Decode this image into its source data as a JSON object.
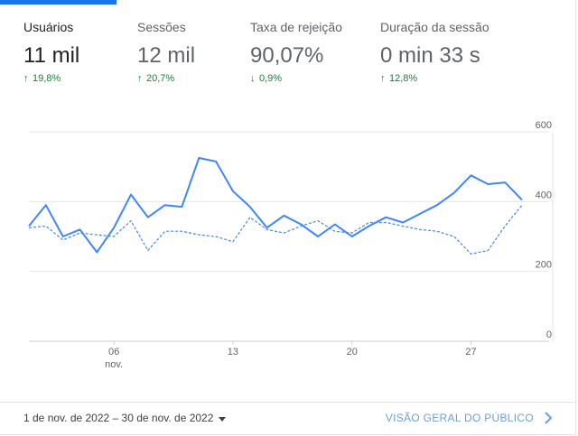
{
  "metrics": [
    {
      "label": "Usuários",
      "value": "11 mil",
      "delta": "19,8%",
      "direction": "up",
      "active": true
    },
    {
      "label": "Sessões",
      "value": "12 mil",
      "delta": "20,7%",
      "direction": "up",
      "active": false
    },
    {
      "label": "Taxa de rejeição",
      "value": "90,07%",
      "delta": "0,9%",
      "direction": "down",
      "active": false
    },
    {
      "label": "Duração da sessão",
      "value": "0 min 33 s",
      "delta": "12,8%",
      "direction": "up",
      "active": false
    }
  ],
  "colors": {
    "accent": "#1a73e8",
    "line": "#4285f4",
    "positive": "#188038",
    "link": "#6b9ede"
  },
  "footer": {
    "date_range": "1 de nov. de 2022 – 30 de nov. de 2022",
    "overview_link": "VISÃO GERAL DO PÚBLICO"
  },
  "chart_data": {
    "type": "line",
    "x": [
      1,
      2,
      3,
      4,
      5,
      6,
      7,
      8,
      9,
      10,
      11,
      12,
      13,
      14,
      15,
      16,
      17,
      18,
      19,
      20,
      21,
      22,
      23,
      24,
      25,
      26,
      27,
      28,
      29,
      30
    ],
    "x_ticks": [
      {
        "value": 6,
        "label": "06",
        "sublabel": "nov."
      },
      {
        "value": 13,
        "label": "13"
      },
      {
        "value": 20,
        "label": "20"
      },
      {
        "value": 27,
        "label": "27"
      }
    ],
    "y_ticks": [
      0,
      200,
      400,
      600
    ],
    "ylim": [
      0,
      600
    ],
    "grid": true,
    "series": [
      {
        "style": "solid",
        "values": [
          330,
          390,
          300,
          320,
          255,
          325,
          420,
          355,
          390,
          385,
          525,
          515,
          430,
          385,
          325,
          360,
          335,
          300,
          335,
          300,
          330,
          355,
          340,
          365,
          390,
          425,
          475,
          450,
          455,
          405
        ]
      },
      {
        "style": "dashed",
        "values": [
          325,
          330,
          290,
          310,
          305,
          300,
          345,
          260,
          315,
          315,
          305,
          300,
          285,
          355,
          320,
          310,
          330,
          345,
          315,
          310,
          340,
          340,
          330,
          320,
          315,
          300,
          250,
          260,
          330,
          390
        ]
      }
    ]
  }
}
